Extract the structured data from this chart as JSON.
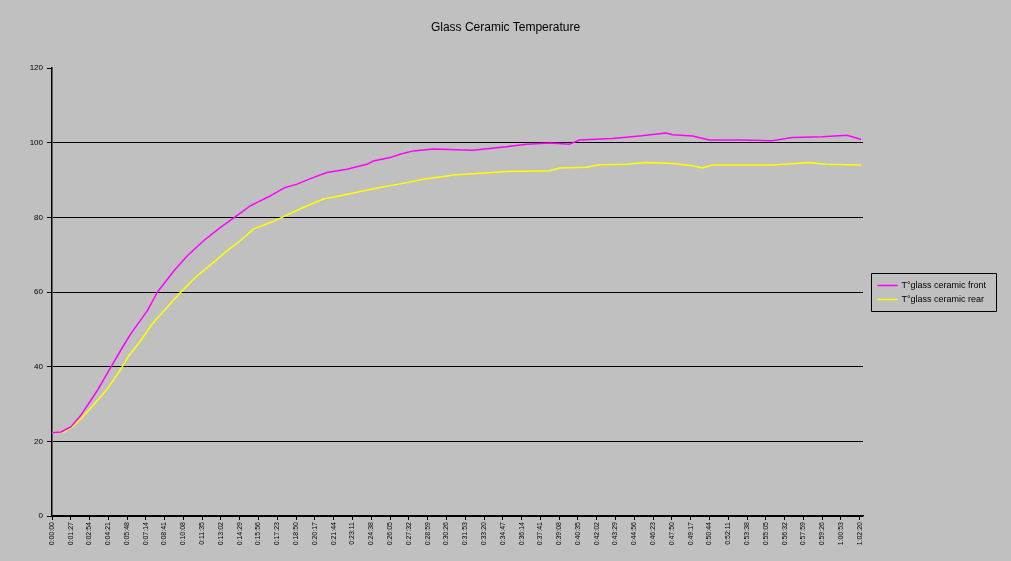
{
  "chart_data": {
    "type": "line",
    "title": "Glass Ceramic Temperature",
    "xlim": [
      0,
      1.043
    ],
    "xticks": [
      {
        "value": 0,
        "label": "0:00:00"
      },
      {
        "value": 0.0242,
        "label": "0:01:27"
      },
      {
        "value": 0.0483,
        "label": "0:02:54"
      },
      {
        "value": 0.0725,
        "label": "0:04:21"
      },
      {
        "value": 0.0967,
        "label": "0:05:48"
      },
      {
        "value": 0.1206,
        "label": "0:07:14"
      },
      {
        "value": 0.1447,
        "label": "0:08:41"
      },
      {
        "value": 0.1689,
        "label": "0:10:08"
      },
      {
        "value": 0.1931,
        "label": "0:11:35"
      },
      {
        "value": 0.2172,
        "label": "0:13:02"
      },
      {
        "value": 0.2414,
        "label": "0:14:29"
      },
      {
        "value": 0.2656,
        "label": "0:15:56"
      },
      {
        "value": 0.2897,
        "label": "0:17:23"
      },
      {
        "value": 0.3139,
        "label": "0:18:50"
      },
      {
        "value": 0.3381,
        "label": "0:20:17"
      },
      {
        "value": 0.3622,
        "label": "0:21:44"
      },
      {
        "value": 0.3864,
        "label": "0:23:11"
      },
      {
        "value": 0.4106,
        "label": "0:24:38"
      },
      {
        "value": 0.4347,
        "label": "0:26:05"
      },
      {
        "value": 0.4589,
        "label": "0:27:32"
      },
      {
        "value": 0.4831,
        "label": "0:28:59"
      },
      {
        "value": 0.5072,
        "label": "0:30:26"
      },
      {
        "value": 0.5314,
        "label": "0:31:53"
      },
      {
        "value": 0.5556,
        "label": "0:33:20"
      },
      {
        "value": 0.5797,
        "label": "0:34:47"
      },
      {
        "value": 0.6039,
        "label": "0:36:14"
      },
      {
        "value": 0.6281,
        "label": "0:37:41"
      },
      {
        "value": 0.6522,
        "label": "0:39:08"
      },
      {
        "value": 0.6764,
        "label": "0:40:35"
      },
      {
        "value": 0.7006,
        "label": "0:42:02"
      },
      {
        "value": 0.7247,
        "label": "0:43:29"
      },
      {
        "value": 0.7489,
        "label": "0:44:56"
      },
      {
        "value": 0.7731,
        "label": "0:46:23"
      },
      {
        "value": 0.7972,
        "label": "0:47:50"
      },
      {
        "value": 0.8214,
        "label": "0:49:17"
      },
      {
        "value": 0.8456,
        "label": "0:50:44"
      },
      {
        "value": 0.8697,
        "label": "0:52:11"
      },
      {
        "value": 0.8939,
        "label": "0:53:38"
      },
      {
        "value": 0.9181,
        "label": "0:55:05"
      },
      {
        "value": 0.9422,
        "label": "0:56:32"
      },
      {
        "value": 0.9664,
        "label": "0:57:59"
      },
      {
        "value": 0.9906,
        "label": "0:59:26"
      },
      {
        "value": 1.0147,
        "label": "1:00:53"
      },
      {
        "value": 1.0389,
        "label": "1:02:20"
      }
    ],
    "ylim": [
      0,
      120
    ],
    "yticks": [
      0,
      20,
      40,
      60,
      80,
      100,
      120
    ],
    "grid": "y",
    "legend": "right",
    "marker": "none",
    "series": [
      {
        "name": "T°glass ceramic front",
        "color": "#ff00ff",
        "x": [
          0,
          0.0115,
          0.0244,
          0.0372,
          0.05,
          0.0586,
          0.0757,
          0.0907,
          0.1013,
          0.1227,
          0.1356,
          0.1569,
          0.174,
          0.1953,
          0.2167,
          0.236,
          0.2552,
          0.2766,
          0.3001,
          0.3151,
          0.3364,
          0.3536,
          0.3792,
          0.4049,
          0.4133,
          0.4348,
          0.4476,
          0.4646,
          0.4903,
          0.5412,
          0.5844,
          0.6101,
          0.64,
          0.6656,
          0.6784,
          0.7211,
          0.7554,
          0.7896,
          0.7981,
          0.8237,
          0.8452,
          0.8836,
          0.9263,
          0.952,
          0.9905,
          1.0225,
          1.0397
        ],
        "values": [
          22.3,
          22.5,
          23.9,
          27,
          31,
          33.7,
          39.9,
          45.2,
          48.8,
          55,
          60,
          65.7,
          69.7,
          73.8,
          77.3,
          80.2,
          83.1,
          85.3,
          88,
          88.9,
          90.7,
          92,
          92.9,
          94.2,
          95.1,
          96,
          96.9,
          97.8,
          98.3,
          98,
          98.9,
          99.6,
          99.9,
          99.6,
          100.7,
          101.1,
          101.8,
          102.6,
          102.1,
          101.8,
          100.7,
          100.7,
          100.5,
          101.4,
          101.6,
          102,
          100.9
        ]
      },
      {
        "name": "T°glass ceramic rear",
        "color": "#ffff00",
        "x": [
          0,
          0.0158,
          0.0286,
          0.0414,
          0.0564,
          0.0714,
          0.0863,
          0.0991,
          0.1141,
          0.1291,
          0.144,
          0.1654,
          0.1869,
          0.2082,
          0.2253,
          0.2424,
          0.2594,
          0.2809,
          0.2979,
          0.3236,
          0.3492,
          0.3706,
          0.3963,
          0.4219,
          0.4562,
          0.4775,
          0.5203,
          0.5416,
          0.5844,
          0.64,
          0.6528,
          0.687,
          0.7041,
          0.7383,
          0.764,
          0.7981,
          0.8237,
          0.8366,
          0.8494,
          0.9263,
          0.9564,
          0.9734,
          0.9948,
          1.0397
        ],
        "values": [
          22.3,
          22.5,
          24.3,
          27,
          30.5,
          34.1,
          38.6,
          43,
          47,
          51.5,
          55,
          59.9,
          64.4,
          68,
          71.1,
          73.8,
          76.9,
          78.6,
          80.2,
          82.7,
          84.9,
          85.8,
          86.9,
          88,
          89.3,
          90.2,
          91.4,
          91.7,
          92.3,
          92.5,
          93.2,
          93.4,
          94.1,
          94.2,
          94.7,
          94.4,
          93.8,
          93.2,
          94,
          94,
          94.4,
          94.7,
          94.2,
          94
        ]
      }
    ]
  }
}
